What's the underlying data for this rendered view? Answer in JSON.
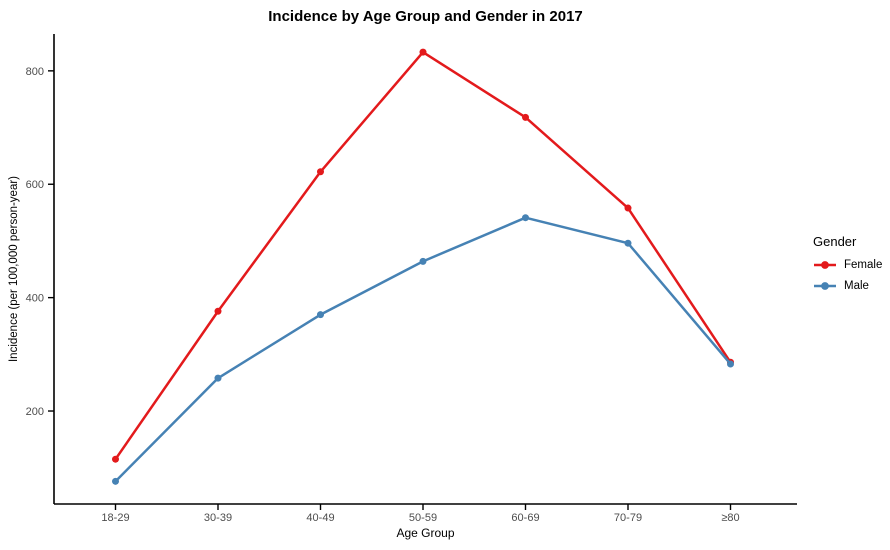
{
  "title": "Incidence by Age Group and Gender in 2017",
  "colors": {
    "female": "#e31a1c",
    "male": "#4682b4",
    "axis_line": "#000000",
    "tick_text": "#4d4d4d"
  },
  "legend": {
    "title": "Gender",
    "items": [
      {
        "label": "Female"
      },
      {
        "label": "Male"
      }
    ]
  },
  "chart_data": {
    "type": "line",
    "title": "Incidence by Age Group and Gender in 2017",
    "xlabel": "Age Group",
    "ylabel": "Incidence (per 100,000 person-year)",
    "categories": [
      "18-29",
      "30-39",
      "40-49",
      "50-59",
      "60-69",
      "70-79",
      "≥80"
    ],
    "series": [
      {
        "name": "Female",
        "color": "#e31a1c",
        "values": [
          115,
          376,
          622,
          833,
          718,
          558,
          286
        ]
      },
      {
        "name": "Male",
        "color": "#4682b4",
        "values": [
          76,
          258,
          370,
          464,
          541,
          496,
          283
        ]
      }
    ],
    "ylim": [
      36,
      865
    ],
    "yticks": [
      200,
      400,
      600,
      800
    ],
    "grid": false,
    "legend_position": "right",
    "legend_title": "Gender"
  }
}
